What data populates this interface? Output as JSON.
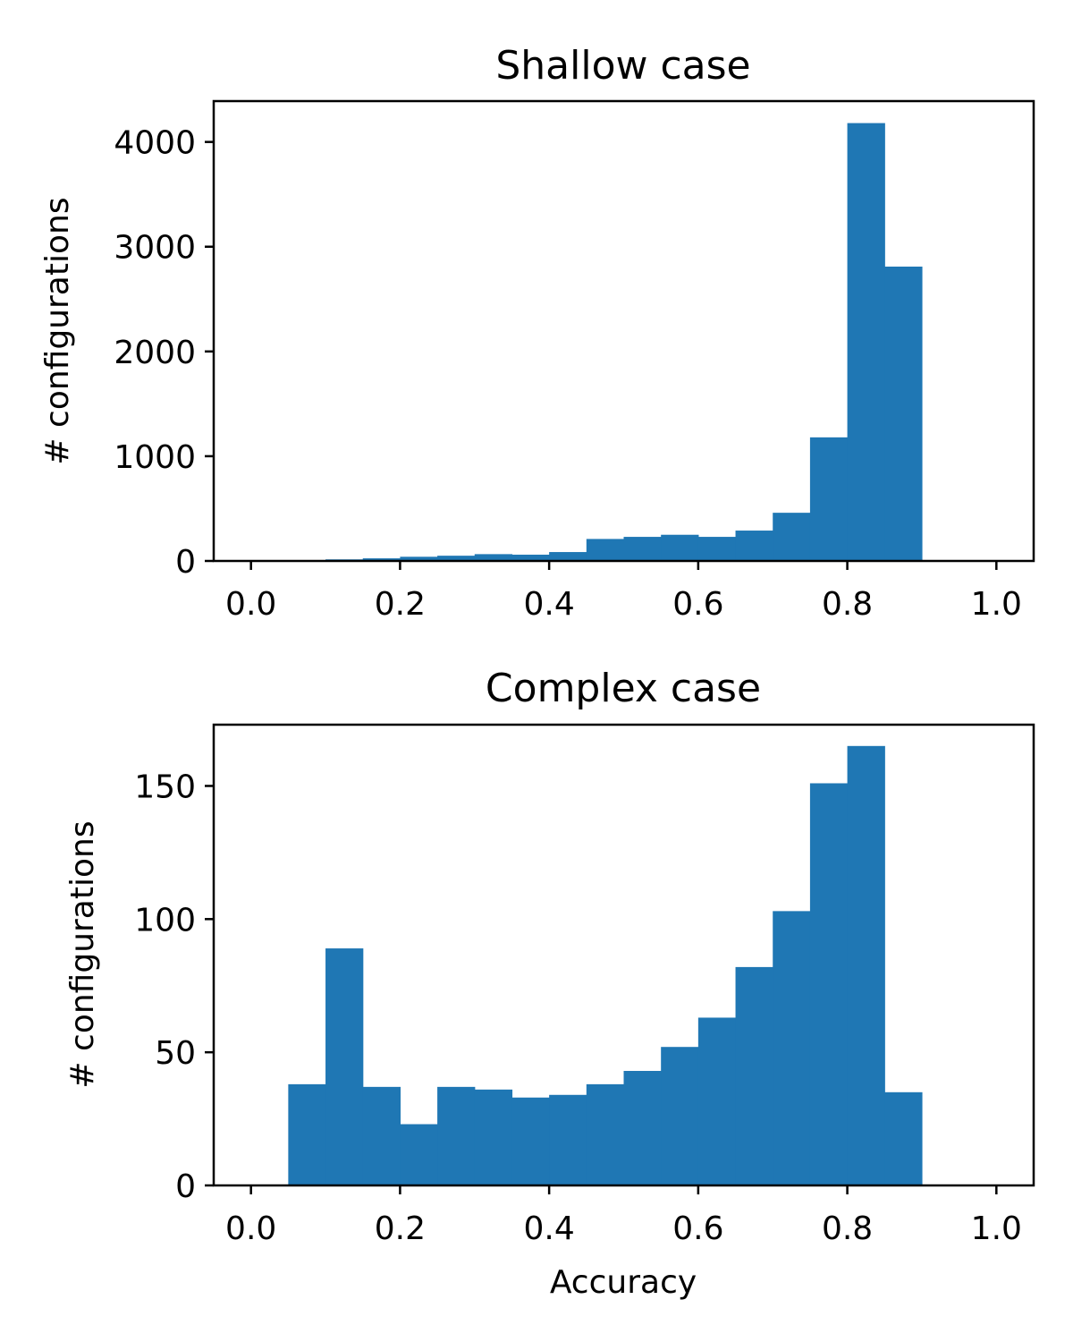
{
  "chart_data": [
    {
      "type": "bar",
      "title": "Shallow case",
      "xlabel": "",
      "ylabel": "# configurations",
      "bin_edges": [
        0.0,
        0.05,
        0.1,
        0.15,
        0.2,
        0.25,
        0.3,
        0.35,
        0.4,
        0.45,
        0.5,
        0.55,
        0.6,
        0.65,
        0.7,
        0.75,
        0.8,
        0.85,
        0.9,
        0.95,
        1.0
      ],
      "values": [
        0,
        5,
        15,
        25,
        40,
        50,
        65,
        60,
        85,
        210,
        230,
        250,
        230,
        290,
        460,
        1180,
        4180,
        2810,
        0,
        0
      ],
      "xlim": [
        -0.05,
        1.05
      ],
      "ylim": [
        0,
        4390
      ],
      "xticks": [
        0.0,
        0.2,
        0.4,
        0.6,
        0.8,
        1.0
      ],
      "xtick_labels": [
        "0.0",
        "0.2",
        "0.4",
        "0.6",
        "0.8",
        "1.0"
      ],
      "yticks": [
        0,
        1000,
        2000,
        3000,
        4000
      ],
      "ytick_labels": [
        "0",
        "1000",
        "2000",
        "3000",
        "4000"
      ],
      "color": "#1f77b4"
    },
    {
      "type": "bar",
      "title": "Complex case",
      "xlabel": "Accuracy",
      "ylabel": "# configurations",
      "bin_edges": [
        0.0,
        0.05,
        0.1,
        0.15,
        0.2,
        0.25,
        0.3,
        0.35,
        0.4,
        0.45,
        0.5,
        0.55,
        0.6,
        0.65,
        0.7,
        0.75,
        0.8,
        0.85,
        0.9,
        0.95,
        1.0
      ],
      "values": [
        0,
        38,
        89,
        37,
        23,
        37,
        36,
        33,
        34,
        38,
        43,
        52,
        63,
        82,
        103,
        151,
        165,
        35,
        0,
        0
      ],
      "xlim": [
        -0.05,
        1.05
      ],
      "ylim": [
        0,
        173
      ],
      "xticks": [
        0.0,
        0.2,
        0.4,
        0.6,
        0.8,
        1.0
      ],
      "xtick_labels": [
        "0.0",
        "0.2",
        "0.4",
        "0.6",
        "0.8",
        "1.0"
      ],
      "yticks": [
        0,
        50,
        100,
        150
      ],
      "ytick_labels": [
        "0",
        "50",
        "100",
        "150"
      ],
      "color": "#1f77b4"
    }
  ]
}
